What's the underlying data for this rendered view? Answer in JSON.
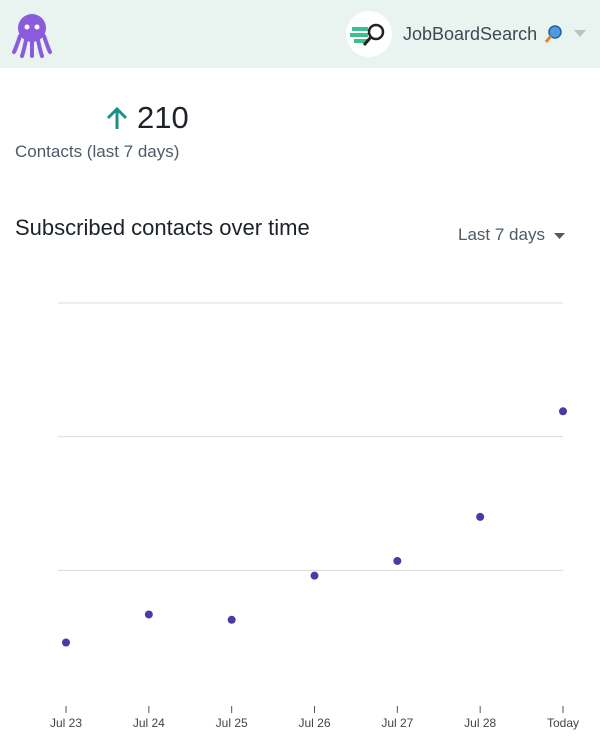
{
  "header": {
    "account_name": "JobBoardSearch"
  },
  "stat": {
    "value": 210,
    "label": "Contacts (last 7 days)"
  },
  "chart_data": {
    "type": "line",
    "title": "Subscribed contacts over time",
    "range_selector": "Last 7 days",
    "categories": [
      "Jul 23",
      "Jul 24",
      "Jul 25",
      "Jul 26",
      "Jul 27",
      "Jul 28",
      "Today"
    ],
    "values": [
      46,
      67,
      63,
      96,
      107,
      140,
      219
    ],
    "color": "#4b3aa6",
    "ylim": [
      0,
      300
    ],
    "yticks": [
      100,
      200,
      300
    ],
    "grid": true
  }
}
